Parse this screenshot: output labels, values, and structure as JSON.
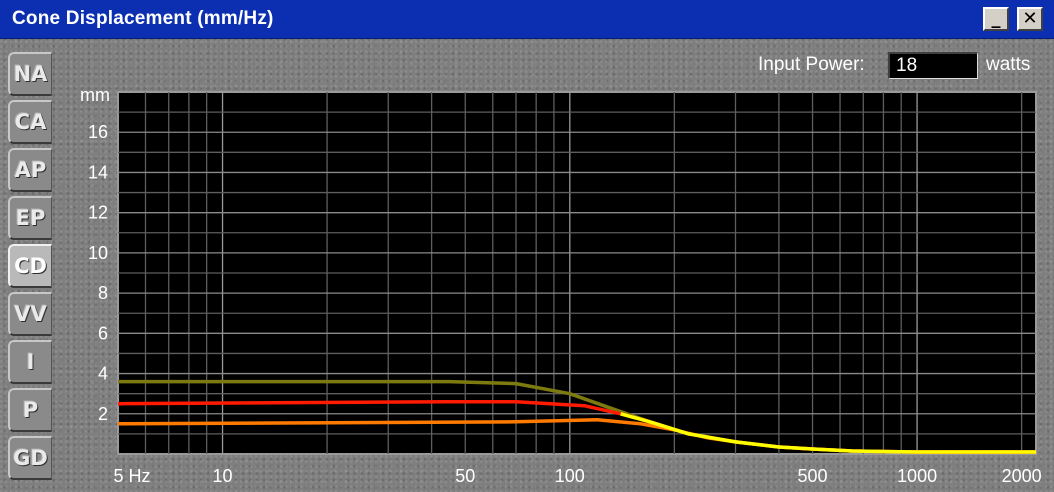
{
  "window": {
    "title": "Cone Displacement (mm/Hz)",
    "minimize_label": "_",
    "close_label": "✕"
  },
  "tabs": [
    {
      "label": "NA",
      "active": false
    },
    {
      "label": "CA",
      "active": false
    },
    {
      "label": "AP",
      "active": false
    },
    {
      "label": "EP",
      "active": false
    },
    {
      "label": "CD",
      "active": true
    },
    {
      "label": "VV",
      "active": false
    },
    {
      "label": "I",
      "active": false
    },
    {
      "label": "P",
      "active": false
    },
    {
      "label": "GD",
      "active": false
    }
  ],
  "input_power": {
    "label": "Input Power:",
    "value": "18",
    "unit": "watts"
  },
  "chart_data": {
    "type": "line",
    "title": "",
    "xlabel": "",
    "ylabel": "mm",
    "x_scale": "log",
    "xlim": [
      5,
      2200
    ],
    "ylim": [
      0,
      18
    ],
    "grid": true,
    "x_ticks": [
      {
        "value": 5,
        "label": "5 Hz"
      },
      {
        "value": 10,
        "label": "10"
      },
      {
        "value": 50,
        "label": "50"
      },
      {
        "value": 100,
        "label": "100"
      },
      {
        "value": 500,
        "label": "500"
      },
      {
        "value": 1000,
        "label": "1000"
      },
      {
        "value": 2000,
        "label": "2000"
      }
    ],
    "y_ticks": [
      {
        "value": 2,
        "label": "2"
      },
      {
        "value": 4,
        "label": "4"
      },
      {
        "value": 6,
        "label": "6"
      },
      {
        "value": 8,
        "label": "8"
      },
      {
        "value": 10,
        "label": "10"
      },
      {
        "value": 12,
        "label": "12"
      },
      {
        "value": 14,
        "label": "14"
      },
      {
        "value": 16,
        "label": "16"
      }
    ],
    "series": [
      {
        "color": "#7d7a10",
        "x": [
          5,
          45,
          70,
          100,
          130,
          170,
          220,
          300,
          400,
          500,
          650,
          1000,
          2200
        ],
        "y": [
          3.6,
          3.6,
          3.5,
          3.0,
          2.3,
          1.6,
          1.0,
          0.6,
          0.35,
          0.25,
          0.15,
          0.1,
          0.1
        ]
      },
      {
        "color": "#ff1a00",
        "x": [
          5,
          45,
          70,
          110,
          140,
          170,
          220,
          300,
          400,
          500,
          650,
          1000,
          2200
        ],
        "y": [
          2.5,
          2.6,
          2.6,
          2.4,
          2.0,
          1.6,
          1.0,
          0.6,
          0.35,
          0.25,
          0.15,
          0.1,
          0.1
        ]
      },
      {
        "color": "#ff7a00",
        "x": [
          5,
          70,
          120,
          160,
          200,
          250,
          300,
          400,
          500,
          650,
          1000,
          2200
        ],
        "y": [
          1.5,
          1.6,
          1.7,
          1.5,
          1.2,
          0.8,
          0.6,
          0.35,
          0.25,
          0.15,
          0.1,
          0.1
        ]
      },
      {
        "color": "#ffff00",
        "x": [
          140,
          170,
          220,
          300,
          400,
          500,
          650,
          1000,
          2200
        ],
        "y": [
          2.0,
          1.6,
          1.0,
          0.6,
          0.35,
          0.25,
          0.15,
          0.1,
          0.1
        ]
      }
    ]
  }
}
